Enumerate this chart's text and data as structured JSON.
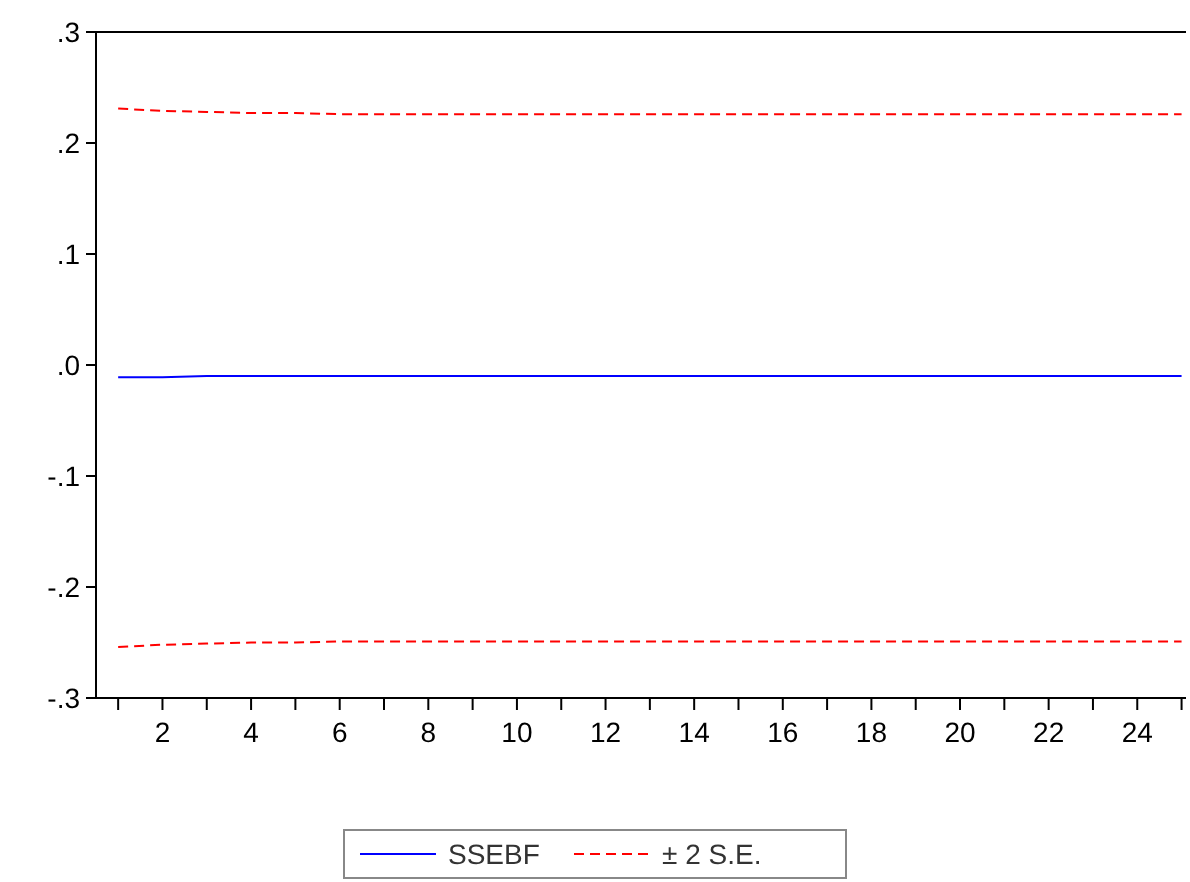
{
  "chart_data": {
    "type": "line",
    "x": [
      1,
      2,
      3,
      4,
      5,
      6,
      7,
      8,
      9,
      10,
      11,
      12,
      13,
      14,
      15,
      16,
      17,
      18,
      19,
      20,
      21,
      22,
      23,
      24,
      25
    ],
    "series": [
      {
        "name": "SSEBF",
        "color": "#0000ff",
        "line_style": "solid",
        "values": [
          -0.011,
          -0.011,
          -0.01,
          -0.01,
          -0.01,
          -0.01,
          -0.01,
          -0.01,
          -0.01,
          -0.01,
          -0.01,
          -0.01,
          -0.01,
          -0.01,
          -0.01,
          -0.01,
          -0.01,
          -0.01,
          -0.01,
          -0.01,
          -0.01,
          -0.01,
          -0.01,
          -0.01,
          -0.01
        ]
      },
      {
        "name": "± 2 S.E.",
        "color": "#ff0000",
        "line_style": "dashed",
        "values": [
          0.231,
          0.229,
          0.228,
          0.227,
          0.227,
          0.226,
          0.226,
          0.226,
          0.226,
          0.226,
          0.226,
          0.226,
          0.226,
          0.226,
          0.226,
          0.226,
          0.226,
          0.226,
          0.226,
          0.226,
          0.226,
          0.226,
          0.226,
          0.226,
          0.226
        ]
      },
      {
        "color": "#ff0000",
        "line_style": "dashed",
        "values": [
          -0.254,
          -0.252,
          -0.251,
          -0.25,
          -0.25,
          -0.249,
          -0.249,
          -0.249,
          -0.249,
          -0.249,
          -0.249,
          -0.249,
          -0.249,
          -0.249,
          -0.249,
          -0.249,
          -0.249,
          -0.249,
          -0.249,
          -0.249,
          -0.249,
          -0.249,
          -0.249,
          -0.249,
          -0.249
        ]
      }
    ],
    "xlim": [
      0.5,
      25.1
    ],
    "xticks": [
      {
        "value": 1,
        "label": null
      },
      2,
      {
        "value": 3,
        "label": null
      },
      4,
      {
        "value": 5,
        "label": null
      },
      6,
      {
        "value": 7,
        "label": null
      },
      8,
      {
        "value": 9,
        "label": null
      },
      10,
      {
        "value": 11,
        "label": null
      },
      12,
      {
        "value": 13,
        "label": null
      },
      14,
      {
        "value": 15,
        "label": null
      },
      16,
      {
        "value": 17,
        "label": null
      },
      18,
      {
        "value": 19,
        "label": null
      },
      20,
      {
        "value": 21,
        "label": null
      },
      22,
      {
        "value": 23,
        "label": null
      },
      24,
      {
        "value": 25,
        "label": null
      }
    ],
    "ylim": [
      -0.3,
      0.3
    ],
    "yticks": [
      {
        "value": -0.3,
        "label": "-.3"
      },
      {
        "value": -0.2,
        "label": "-.2"
      },
      {
        "value": -0.1,
        "label": "-.1"
      },
      {
        "value": 0,
        "label": ".0"
      },
      {
        "value": 0.1,
        "label": ".1"
      },
      {
        "value": 0.2,
        "label": ".2"
      },
      {
        "value": 0.3,
        "label": ".3"
      }
    ],
    "grid": false,
    "legend": "bottom",
    "marker": "none"
  }
}
